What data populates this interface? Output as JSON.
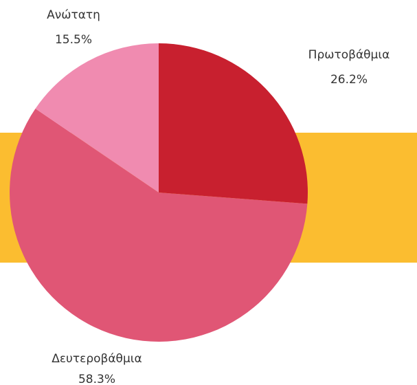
{
  "chart_data": {
    "type": "pie",
    "categories": [
      "Πρωτοβάθμια",
      "Δευτεροβάθμια",
      "Ανώτατη"
    ],
    "values": [
      26.2,
      58.3,
      15.5
    ],
    "value_labels": [
      "26.2%",
      "58.3%",
      "15.5%"
    ],
    "colors": [
      "#c8202f",
      "#e05675",
      "#f08bb0"
    ]
  }
}
